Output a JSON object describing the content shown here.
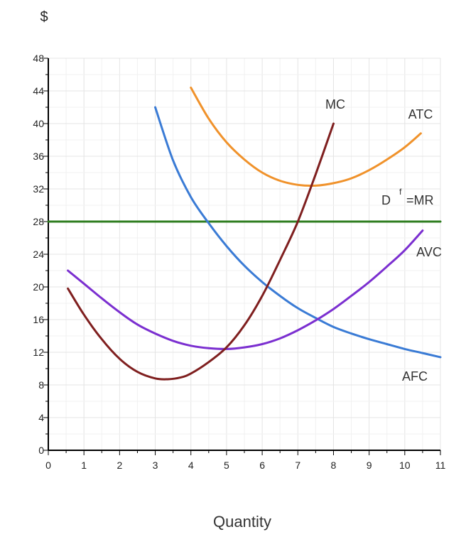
{
  "chart_data": {
    "type": "line",
    "ylabel": "$",
    "xlabel": "Quantity",
    "xlim": [
      0,
      11
    ],
    "ylim": [
      0,
      48
    ],
    "x_ticks": [
      "0",
      "1",
      "2",
      "3",
      "4",
      "5",
      "6",
      "7",
      "8",
      "9",
      "10",
      "11"
    ],
    "y_ticks": [
      "0",
      "4",
      "8",
      "12",
      "16",
      "20",
      "24",
      "28",
      "32",
      "36",
      "40",
      "44",
      "48"
    ],
    "grid": true,
    "series": [
      {
        "name": "AFC",
        "color": "#3a7bd5",
        "x": [
          3.0,
          3.5,
          4.0,
          4.5,
          5.0,
          5.5,
          6.0,
          6.5,
          7.0,
          7.5,
          8.0,
          8.5,
          9.0,
          9.5,
          10.0,
          10.5,
          11.0
        ],
        "y": [
          42.0,
          35.5,
          31.0,
          27.8,
          25.0,
          22.6,
          20.6,
          18.9,
          17.4,
          16.2,
          15.1,
          14.3,
          13.6,
          13.0,
          12.4,
          11.9,
          11.4
        ]
      },
      {
        "name": "ATC",
        "color": "#f0922b",
        "x": [
          4.0,
          4.5,
          5.0,
          5.5,
          6.0,
          6.5,
          7.0,
          7.5,
          8.0,
          8.5,
          9.0,
          9.5,
          10.0,
          10.45
        ],
        "y": [
          44.4,
          40.6,
          37.7,
          35.6,
          34.0,
          33.0,
          32.5,
          32.4,
          32.7,
          33.3,
          34.3,
          35.6,
          37.1,
          38.8
        ]
      },
      {
        "name": "MC",
        "color": "#7f1f1f",
        "x": [
          0.55,
          1.0,
          1.5,
          2.0,
          2.5,
          3.0,
          3.35,
          3.7,
          4.0,
          4.5,
          5.0,
          5.5,
          6.0,
          6.5,
          7.0,
          7.5,
          8.0
        ],
        "y": [
          19.8,
          16.6,
          13.6,
          11.2,
          9.6,
          8.8,
          8.7,
          8.9,
          9.4,
          10.8,
          12.6,
          15.3,
          18.9,
          23.3,
          28.0,
          33.8,
          40.0
        ]
      },
      {
        "name": "AVC",
        "color": "#7b2fd0",
        "x": [
          0.55,
          1.0,
          1.5,
          2.0,
          2.5,
          3.0,
          3.5,
          4.0,
          4.5,
          5.0,
          5.5,
          6.0,
          6.5,
          7.0,
          7.5,
          8.0,
          8.5,
          9.0,
          9.5,
          10.0,
          10.5
        ],
        "y": [
          22.0,
          20.4,
          18.6,
          16.9,
          15.4,
          14.3,
          13.4,
          12.8,
          12.5,
          12.4,
          12.6,
          13.0,
          13.7,
          14.7,
          15.9,
          17.3,
          18.9,
          20.6,
          22.5,
          24.5,
          26.9
        ]
      },
      {
        "name": "D f =MR",
        "color": "#2e7d1f",
        "x": [
          0,
          11
        ],
        "y": [
          28,
          28
        ]
      }
    ],
    "labels": {
      "mc": "MC",
      "atc": "ATC",
      "df_main": "D",
      "df_sup": "f",
      "df_tail": "=MR",
      "avc": "AVC",
      "afc": "AFC"
    }
  }
}
